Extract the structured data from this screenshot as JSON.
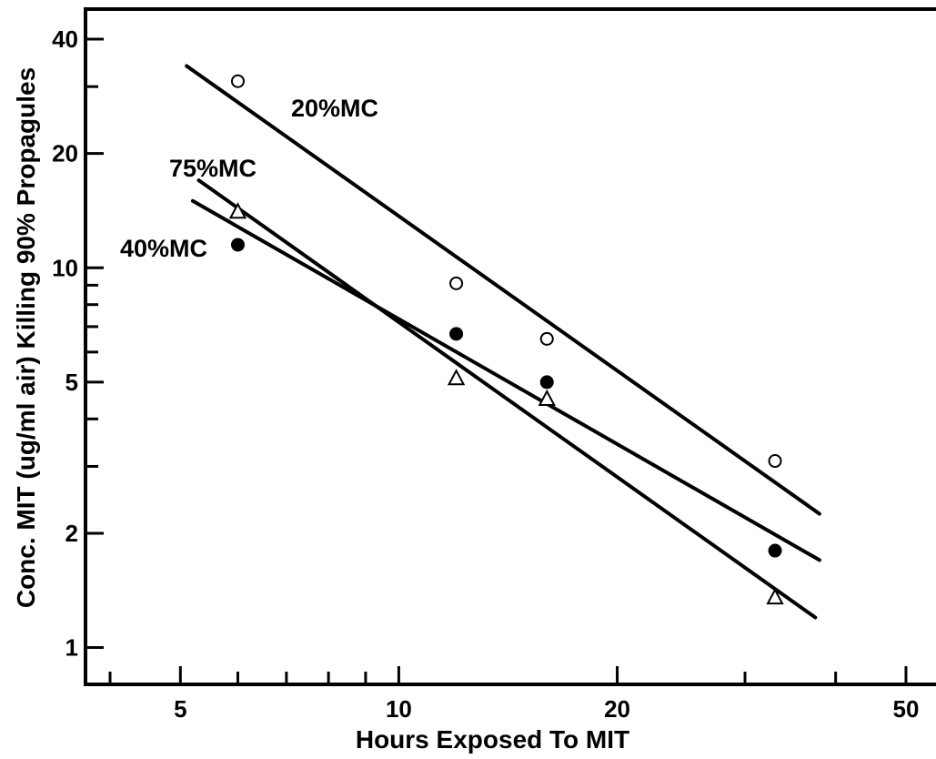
{
  "chart_data": {
    "type": "scatter",
    "title": "",
    "xlabel": "Hours Exposed To MIT",
    "ylabel": "Conc. MIT (ug/ml air) Killing 90% Propagules",
    "x_scale": "log",
    "y_scale": "log",
    "xlim": [
      3.7,
      55
    ],
    "ylim": [
      0.8,
      48
    ],
    "x_ticks": [
      5,
      10,
      20,
      50
    ],
    "x_tick_labels": [
      "5",
      "10",
      "20",
      "50"
    ],
    "y_ticks": [
      1,
      2,
      5,
      10,
      20,
      40
    ],
    "y_tick_labels": [
      "1",
      "2",
      "5",
      "10",
      "20",
      "40"
    ],
    "grid": false,
    "series": [
      {
        "name": "20%MC",
        "marker": "open-circle",
        "points": [
          {
            "x": 6,
            "y": 31
          },
          {
            "x": 12,
            "y": 9.1
          },
          {
            "x": 16,
            "y": 6.5
          },
          {
            "x": 33,
            "y": 3.1
          }
        ],
        "fit_line": [
          [
            5.1,
            34
          ],
          [
            38,
            2.25
          ]
        ]
      },
      {
        "name": "75%MC",
        "marker": "open-triangle",
        "points": [
          {
            "x": 6,
            "y": 14
          },
          {
            "x": 12,
            "y": 5.1
          },
          {
            "x": 16,
            "y": 4.5
          },
          {
            "x": 33,
            "y": 1.35
          }
        ],
        "fit_line": [
          [
            5.3,
            17
          ],
          [
            37.5,
            1.2
          ]
        ]
      },
      {
        "name": "40%MC",
        "marker": "filled-circle",
        "points": [
          {
            "x": 6,
            "y": 11.5
          },
          {
            "x": 12,
            "y": 6.7
          },
          {
            "x": 16,
            "y": 5
          },
          {
            "x": 33,
            "y": 1.8
          }
        ],
        "fit_line": [
          [
            5.2,
            15
          ],
          [
            38,
            1.7
          ]
        ]
      }
    ]
  }
}
